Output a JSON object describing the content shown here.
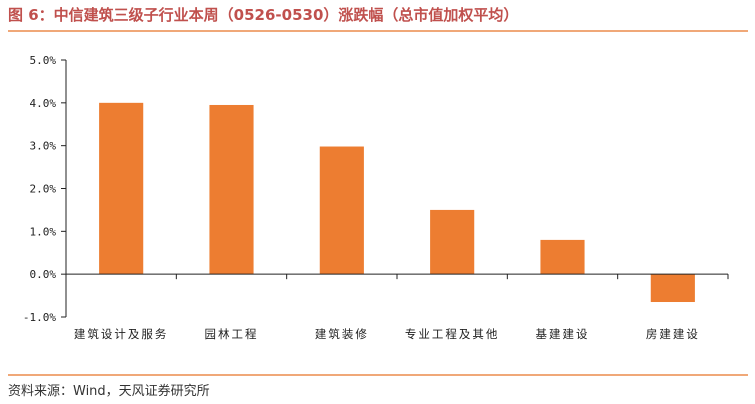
{
  "header": {
    "title": "图 6：中信建筑三级子行业本周（0526-0530）涨跌幅（总市值加权平均）"
  },
  "footer": {
    "source": "资料来源：Wind，天风证券研究所"
  },
  "colors": {
    "accent": "#ed7d31",
    "title": "#c0504d",
    "rule": "#f0a878",
    "axis": "#222222"
  },
  "chart_data": {
    "type": "bar",
    "title": "图 6：中信建筑三级子行业本周（0526-0530）涨跌幅（总市值加权平均）",
    "xlabel": "",
    "ylabel": "",
    "categories": [
      "建筑设计及服务",
      "园林工程",
      "建筑装修",
      "专业工程及其他",
      "基建建设",
      "房建建设"
    ],
    "values": [
      4.0,
      3.95,
      2.98,
      1.5,
      0.8,
      -0.65
    ],
    "yticks": [
      "5.0%",
      "4.0%",
      "3.0%",
      "2.0%",
      "1.0%",
      "0.0%",
      "-1.0%"
    ],
    "ylim": [
      -1.0,
      5.0
    ],
    "grid": false,
    "legend": "none"
  }
}
